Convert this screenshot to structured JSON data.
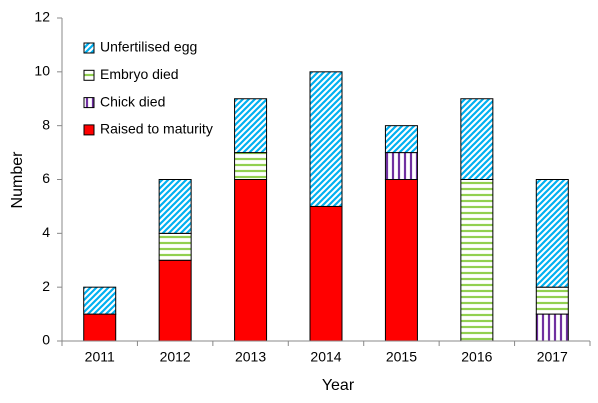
{
  "chart_data": {
    "type": "stacked_bar",
    "x_label": "Year",
    "y_label": "Number",
    "categories": [
      "2011",
      "2012",
      "2013",
      "2014",
      "2015",
      "2016",
      "2017"
    ],
    "series": [
      {
        "name": "Raised to maturity",
        "color": "#ff0000",
        "pattern": "solid",
        "values": [
          1,
          3,
          6,
          5,
          6,
          0,
          0
        ]
      },
      {
        "name": "Chick died",
        "color": "#7030a0",
        "pattern": "vertical",
        "values": [
          0,
          0,
          0,
          0,
          1,
          0,
          1
        ]
      },
      {
        "name": "Embryo died",
        "color": "#92d050",
        "pattern": "horizontal",
        "values": [
          0,
          1,
          1,
          0,
          0,
          6,
          1
        ]
      },
      {
        "name": "Unfertilised egg",
        "color": "#00b0f0",
        "pattern": "diagonal",
        "values": [
          1,
          2,
          2,
          5,
          1,
          3,
          4
        ]
      }
    ],
    "ylim": [
      0,
      12
    ],
    "yticks": [
      0,
      2,
      4,
      6,
      8,
      10,
      12
    ],
    "legend": "upper left",
    "grid": false
  }
}
